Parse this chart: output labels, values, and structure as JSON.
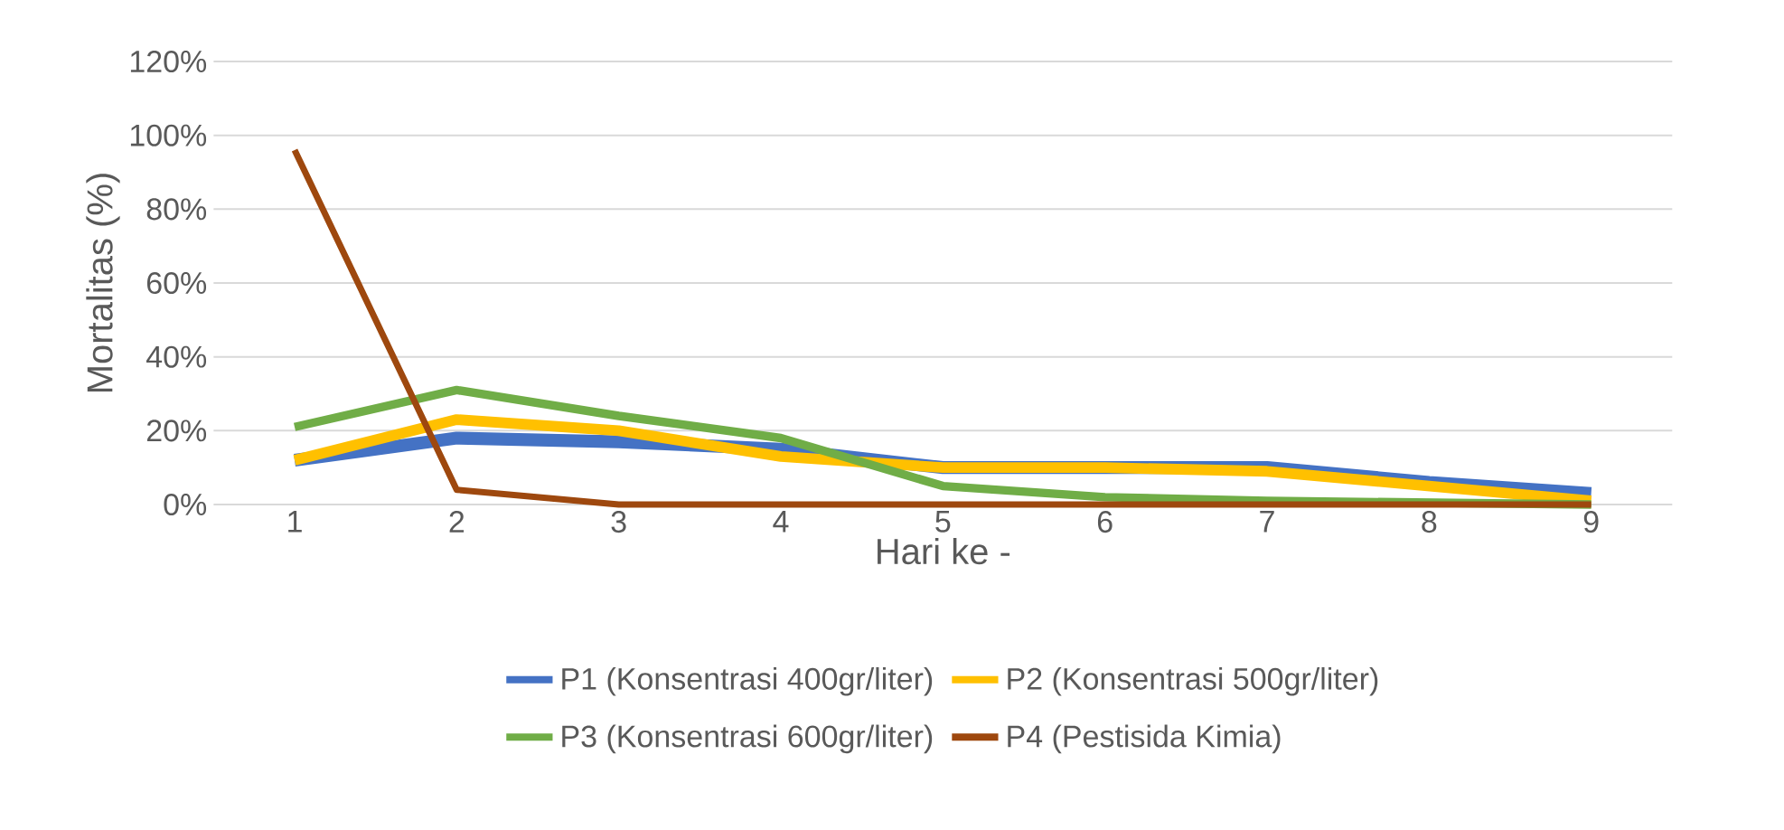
{
  "chart_data": {
    "type": "line",
    "xlabel": "Hari ke -",
    "ylabel": "Mortalitas (%)",
    "categories": [
      "1",
      "2",
      "3",
      "4",
      "5",
      "6",
      "7",
      "8",
      "9"
    ],
    "series": [
      {
        "name": "P1 (Konsentrasi 400gr/liter)",
        "color": "#4472c4",
        "values": [
          12,
          18,
          17,
          15,
          10,
          10,
          10,
          6,
          3
        ]
      },
      {
        "name": "P2 (Konsentrasi 500gr/liter)",
        "color": "#ffc000",
        "values": [
          12,
          23,
          20,
          13,
          10,
          10,
          9,
          5,
          1
        ]
      },
      {
        "name": "P3 (Konsentrasi 600gr/liter)",
        "color": "#70ad47",
        "values": [
          21,
          31,
          24,
          18,
          5,
          2,
          1,
          0.5,
          0
        ]
      },
      {
        "name": "P4 (Pestisida Kimia)",
        "color": "#9e480e",
        "values": [
          96,
          4,
          0,
          0,
          0,
          0,
          0,
          0,
          0
        ]
      }
    ],
    "ylim": [
      0,
      120
    ],
    "yticks": [
      {
        "value": 0,
        "label": "0%"
      },
      {
        "value": 20,
        "label": "20%"
      },
      {
        "value": 40,
        "label": "40%"
      },
      {
        "value": 60,
        "label": "60%"
      },
      {
        "value": 80,
        "label": "80%"
      },
      {
        "value": 100,
        "label": "100%"
      },
      {
        "value": 120,
        "label": "120%"
      }
    ],
    "grid": "y",
    "legend": "bottom",
    "line_style": "solid"
  }
}
